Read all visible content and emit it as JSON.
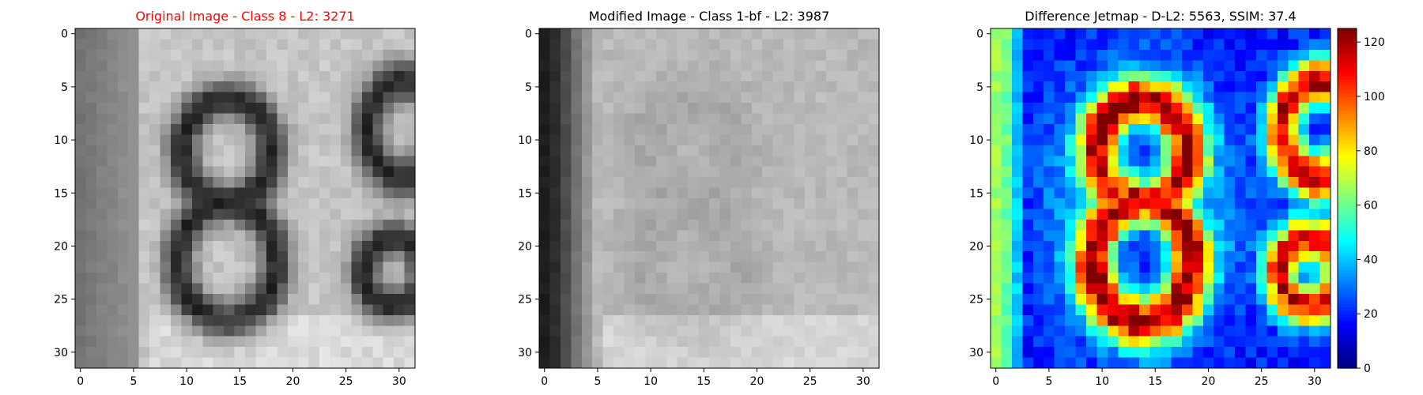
{
  "chart_data": [
    {
      "type": "heatmap",
      "title": "Original Image - Class 8 - L2: 3271",
      "title_color": "#ff0000",
      "colormap": "gray",
      "xticks": [
        0,
        5,
        10,
        15,
        20,
        25,
        30
      ],
      "yticks": [
        0,
        5,
        10,
        15,
        20,
        25,
        30
      ],
      "xlim": [
        -0.5,
        31.5
      ],
      "ylim": [
        31.5,
        -0.5
      ],
      "grid": false,
      "image_size": [
        32,
        32
      ],
      "content": "grayscale digit 8 centered, partial digits at right edge"
    },
    {
      "type": "heatmap",
      "title": "Modified Image - Class 1-bf - L2: 3987",
      "title_color": "#000000",
      "colormap": "gray",
      "xticks": [
        0,
        5,
        10,
        15,
        20,
        25,
        30
      ],
      "yticks": [
        0,
        5,
        10,
        15,
        20,
        25,
        30
      ],
      "xlim": [
        -0.5,
        31.5
      ],
      "ylim": [
        31.5,
        -0.5
      ],
      "grid": false,
      "image_size": [
        32,
        32
      ],
      "content": "blurred grayscale image with dark vertical band at left"
    },
    {
      "type": "heatmap",
      "title": "Difference Jetmap - D-L2: 5563, SSIM: 37.4",
      "title_color": "#000000",
      "colormap": "jet",
      "xticks": [
        0,
        5,
        10,
        15,
        20,
        25,
        30
      ],
      "yticks": [
        0,
        5,
        10,
        15,
        20,
        25,
        30
      ],
      "xlim": [
        -0.5,
        31.5
      ],
      "ylim": [
        31.5,
        -0.5
      ],
      "grid": false,
      "image_size": [
        32,
        32
      ],
      "colorbar": {
        "min": 0,
        "max": 125,
        "ticks": [
          0,
          20,
          40,
          60,
          80,
          100,
          120
        ]
      }
    }
  ]
}
